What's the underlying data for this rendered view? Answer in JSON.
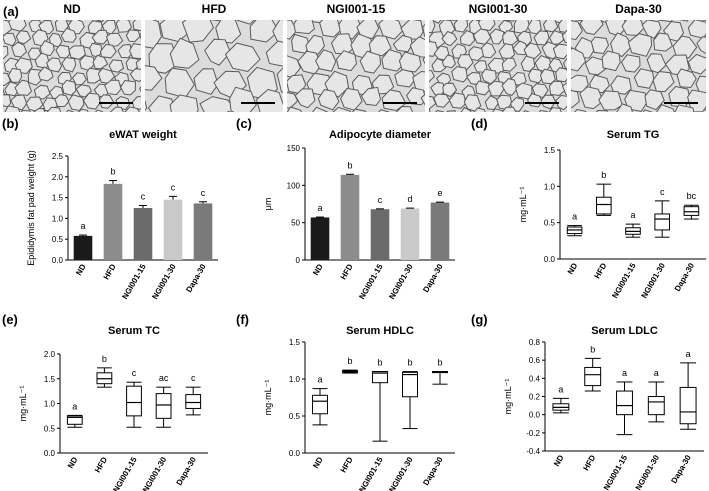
{
  "histology": {
    "letter": "(a)",
    "images": [
      {
        "label": "ND",
        "size": "small"
      },
      {
        "label": "HFD",
        "size": "large"
      },
      {
        "label": "NGI001-15",
        "size": "medium"
      },
      {
        "label": "NGI001-30",
        "size": "small"
      },
      {
        "label": "Dapa-30",
        "size": "medium"
      }
    ]
  },
  "chart_data": [
    {
      "id": "b",
      "letter": "(b)",
      "type": "bar",
      "title": "eWAT weight",
      "ylabel": "Epididymis fat pad weight (g)",
      "categories": [
        "ND",
        "HFD",
        "NGI001-15",
        "NGI001-30",
        "Dapa-30"
      ],
      "values": [
        0.58,
        1.83,
        1.25,
        1.45,
        1.36
      ],
      "errors": [
        0.02,
        0.08,
        0.06,
        0.08,
        0.04
      ],
      "letters": [
        "a",
        "b",
        "c",
        "c",
        "c"
      ],
      "colors": [
        "#1a1a1a",
        "#8c8c8c",
        "#6b6b6b",
        "#c9c9c9",
        "#7a7a7a"
      ],
      "ylim": [
        0,
        2.5
      ],
      "yticks": [
        "0.0",
        "0.5",
        "1.0",
        "1.5",
        "2.0",
        "2.5"
      ]
    },
    {
      "id": "c",
      "letter": "(c)",
      "type": "bar",
      "title": "Adipocyte diameter",
      "ylabel": "μm",
      "categories": [
        "ND",
        "HFD",
        "NGI001-15",
        "NGI001-30",
        "Dapa-30"
      ],
      "values": [
        57,
        114,
        68,
        69,
        77
      ],
      "errors": [
        0.5,
        0.8,
        0.5,
        0.5,
        0.5
      ],
      "letters": [
        "a",
        "b",
        "c",
        "d",
        "e"
      ],
      "colors": [
        "#1a1a1a",
        "#8c8c8c",
        "#6b6b6b",
        "#c9c9c9",
        "#7a7a7a"
      ],
      "ylim": [
        0,
        150
      ],
      "yticks": [
        "0",
        "50",
        "100",
        "150"
      ]
    },
    {
      "id": "d",
      "letter": "(d)",
      "type": "box",
      "title": "Serum TG",
      "ylabel": "mg·mL⁻¹",
      "categories": [
        "ND",
        "HFD",
        "NGI001-15",
        "NGI001-30",
        "Dapa-30"
      ],
      "boxes": [
        {
          "min": 0.32,
          "q1": 0.35,
          "median": 0.4,
          "q3": 0.44,
          "max": 0.46
        },
        {
          "min": 0.6,
          "q1": 0.62,
          "median": 0.75,
          "q3": 0.85,
          "max": 1.03
        },
        {
          "min": 0.3,
          "q1": 0.34,
          "median": 0.38,
          "q3": 0.43,
          "max": 0.48
        },
        {
          "min": 0.3,
          "q1": 0.4,
          "median": 0.55,
          "q3": 0.62,
          "max": 0.8
        },
        {
          "min": 0.55,
          "q1": 0.6,
          "median": 0.65,
          "q3": 0.72,
          "max": 0.74
        }
      ],
      "letters": [
        "a",
        "b",
        "a",
        "c",
        "bc"
      ],
      "ylim": [
        0,
        1.5
      ],
      "yticks": [
        "0.0",
        "0.5",
        "1.0",
        "1.5"
      ]
    },
    {
      "id": "e",
      "letter": "(e)",
      "type": "box",
      "title": "Serum TC",
      "ylabel": "mg·mL⁻¹",
      "categories": [
        "ND",
        "HFD",
        "NGI001-15",
        "NGI001-30",
        "Dapa-30"
      ],
      "boxes": [
        {
          "min": 0.52,
          "q1": 0.58,
          "median": 0.72,
          "q3": 0.75,
          "max": 0.76
        },
        {
          "min": 1.33,
          "q1": 1.4,
          "median": 1.5,
          "q3": 1.62,
          "max": 1.72
        },
        {
          "min": 0.52,
          "q1": 0.75,
          "median": 1.02,
          "q3": 1.35,
          "max": 1.43
        },
        {
          "min": 0.52,
          "q1": 0.7,
          "median": 0.97,
          "q3": 1.2,
          "max": 1.33
        },
        {
          "min": 0.77,
          "q1": 0.9,
          "median": 1.02,
          "q3": 1.18,
          "max": 1.33
        }
      ],
      "letters": [
        "a",
        "b",
        "c",
        "ac",
        "c"
      ],
      "ylim": [
        0,
        2.0
      ],
      "yticks": [
        "0.0",
        "0.5",
        "1.0",
        "1.5",
        "2.0"
      ]
    },
    {
      "id": "f",
      "letter": "(f)",
      "type": "box",
      "title": "Serum HDLC",
      "ylabel": "mg·mL⁻¹",
      "categories": [
        "ND",
        "HFD",
        "NGI001-15",
        "NGI001-30",
        "Dapa-30"
      ],
      "boxes": [
        {
          "min": 0.38,
          "q1": 0.53,
          "median": 0.7,
          "q3": 0.78,
          "max": 0.87
        },
        {
          "min": 1.08,
          "q1": 1.09,
          "median": 1.1,
          "q3": 1.11,
          "max": 1.12
        },
        {
          "min": 0.16,
          "q1": 0.95,
          "median": 1.08,
          "q3": 1.1,
          "max": 1.1
        },
        {
          "min": 0.33,
          "q1": 0.76,
          "median": 1.06,
          "q3": 1.09,
          "max": 1.1
        },
        {
          "min": 0.93,
          "q1": 1.1,
          "median": 1.1,
          "q3": 1.1,
          "max": 1.1
        }
      ],
      "letters": [
        "a",
        "b",
        "b",
        "b",
        "b"
      ],
      "ylim": [
        0,
        1.5
      ],
      "yticks": [
        "0.0",
        "0.5",
        "1.0",
        "1.5"
      ]
    },
    {
      "id": "g",
      "letter": "(g)",
      "type": "box",
      "title": "Serum LDLC",
      "ylabel": "mg·mL⁻¹",
      "categories": [
        "ND",
        "HFD",
        "NGI001-15",
        "NGI001-30",
        "Dapa-30"
      ],
      "boxes": [
        {
          "min": 0.02,
          "q1": 0.05,
          "median": 0.08,
          "q3": 0.12,
          "max": 0.18
        },
        {
          "min": 0.26,
          "q1": 0.32,
          "median": 0.44,
          "q3": 0.52,
          "max": 0.62
        },
        {
          "min": -0.22,
          "q1": 0.0,
          "median": 0.1,
          "q3": 0.26,
          "max": 0.36
        },
        {
          "min": -0.08,
          "q1": 0.0,
          "median": 0.14,
          "q3": 0.2,
          "max": 0.36
        },
        {
          "min": -0.16,
          "q1": -0.1,
          "median": 0.03,
          "q3": 0.3,
          "max": 0.57
        }
      ],
      "letters": [
        "a",
        "b",
        "a",
        "a",
        "a"
      ],
      "ylim": [
        -0.4,
        0.8
      ],
      "yticks": [
        "-0.4",
        "-0.2",
        "0.0",
        "0.2",
        "0.4",
        "0.6",
        "0.8"
      ]
    }
  ]
}
